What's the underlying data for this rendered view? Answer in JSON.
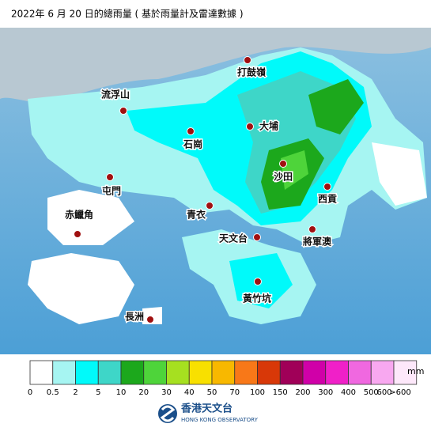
{
  "header": {
    "title": "2022年 6 月 20 日的總雨量 ( 基於雨量計及雷達數據 )"
  },
  "map": {
    "places": [
      {
        "label": "打鼓嶺"
      },
      {
        "label": "流浮山"
      },
      {
        "label": "大埔"
      },
      {
        "label": "石崗"
      },
      {
        "label": "沙田"
      },
      {
        "label": "屯門"
      },
      {
        "label": "西貢"
      },
      {
        "label": "青衣"
      },
      {
        "label": "赤鱲角"
      },
      {
        "label": "天文台"
      },
      {
        "label": "將軍澳"
      },
      {
        "label": "黃竹坑"
      },
      {
        "label": "長洲"
      }
    ]
  },
  "legend": {
    "unit": "mm",
    "colors": [
      "#ffffff",
      "#a6f5f2",
      "#00fafa",
      "#3ed6c8",
      "#1ca81c",
      "#4ed43a",
      "#a6e020",
      "#f8e000",
      "#f8b800",
      "#f87818",
      "#d83808",
      "#a00058",
      "#d000a8",
      "#f020c8",
      "#f068e0",
      "#f8a8f0",
      "#fde8fa"
    ],
    "labels": [
      "0",
      "0.5",
      "2",
      "5",
      "10",
      "20",
      "30",
      "40",
      "50",
      "70",
      "100",
      "150",
      "200",
      "300",
      "400",
      "500",
      "600",
      ">600"
    ]
  },
  "footer": {
    "org_chinese": "香港天文台",
    "org_english": "HONG KONG OBSERVATORY"
  }
}
